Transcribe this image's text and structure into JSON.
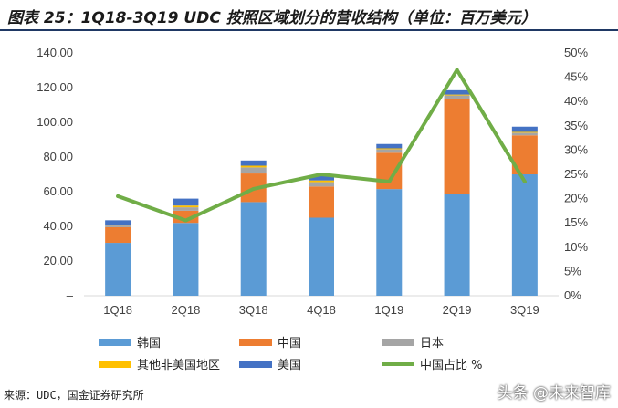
{
  "title": "图表 25：1Q18-3Q19 UDC 按照区域划分的营收结构（单位：百万美元）",
  "source": "来源：UDC，国金证券研究所",
  "watermark": "头条 @未来智库",
  "colors": {
    "korea": "#5b9bd5",
    "china": "#ed7d31",
    "japan": "#a5a5a5",
    "other": "#ffc000",
    "usa": "#4472c4",
    "china_share": "#70ad47",
    "title_rule": "#1f3864"
  },
  "chart_data": {
    "type": "bar",
    "stacked": true,
    "categories": [
      "1Q18",
      "2Q18",
      "3Q18",
      "4Q18",
      "1Q19",
      "2Q19",
      "3Q19"
    ],
    "series": [
      {
        "name": "韩国",
        "key": "korea",
        "values": [
          30.5,
          42.0,
          54.0,
          45.0,
          61.5,
          58.5,
          70.0
        ]
      },
      {
        "name": "中国",
        "key": "china",
        "values": [
          9.0,
          7.0,
          16.5,
          18.0,
          21.0,
          55.0,
          22.5
        ]
      },
      {
        "name": "日本",
        "key": "japan",
        "values": [
          1.0,
          2.0,
          3.5,
          2.5,
          2.0,
          2.0,
          1.5
        ]
      },
      {
        "name": "其他非美国地区",
        "key": "other",
        "values": [
          0.5,
          1.0,
          1.0,
          1.0,
          0.5,
          0.5,
          0.5
        ]
      },
      {
        "name": "美国",
        "key": "usa",
        "values": [
          2.5,
          4.0,
          3.0,
          2.5,
          2.5,
          2.5,
          3.0
        ]
      }
    ],
    "line_series": {
      "name": "中国占比 %",
      "key": "china_share",
      "axis": "right",
      "values": [
        20.5,
        15.5,
        22.0,
        25.0,
        23.5,
        46.5,
        23.5
      ]
    },
    "y_left": {
      "min": 0,
      "max": 140,
      "ticks": [
        "–",
        "20.00",
        "40.00",
        "60.00",
        "80.00",
        "100.00",
        "120.00",
        "140.00"
      ]
    },
    "y_right": {
      "min": 0,
      "max": 50,
      "ticks": [
        "0%",
        "5%",
        "10%",
        "15%",
        "20%",
        "25%",
        "30%",
        "35%",
        "40%",
        "45%",
        "50%"
      ]
    },
    "grid": false,
    "legend_position": "bottom"
  }
}
